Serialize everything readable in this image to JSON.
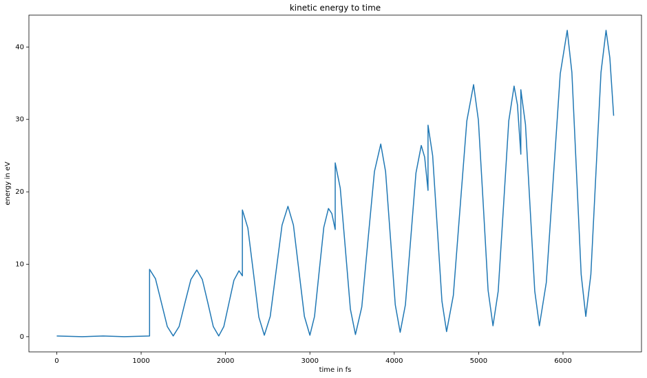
{
  "chart_data": {
    "type": "line",
    "title": "kinetic energy to time",
    "xlabel": "time in fs",
    "ylabel": "energy in eV",
    "color": "#1f77b4",
    "grid": false,
    "x": [
      0,
      300,
      550,
      800,
      1100,
      1100,
      1170,
      1240,
      1310,
      1380,
      1450,
      1520,
      1590,
      1660,
      1725,
      1790,
      1855,
      1920,
      1980,
      2040,
      2100,
      2160,
      2200,
      2200,
      2265,
      2330,
      2395,
      2460,
      2530,
      2600,
      2670,
      2740,
      2805,
      2870,
      2935,
      3000,
      3055,
      3110,
      3165,
      3220,
      3260,
      3300,
      3300,
      3360,
      3420,
      3480,
      3540,
      3615,
      3690,
      3765,
      3840,
      3897,
      3955,
      4012,
      4070,
      4132,
      4195,
      4257,
      4320,
      4360,
      4400,
      4400,
      4455,
      4510,
      4565,
      4620,
      4700,
      4780,
      4860,
      4940,
      4997,
      5055,
      5112,
      5170,
      5232,
      5295,
      5357,
      5420,
      5460,
      5500,
      5500,
      5555,
      5610,
      5665,
      5720,
      5802,
      5885,
      5967,
      6050,
      6105,
      6160,
      6215,
      6270,
      6330,
      6390,
      6450,
      6510,
      6555,
      6600
    ],
    "values": [
      0.1,
      0.0,
      0.1,
      0.0,
      0.1,
      9.3,
      8.0,
      4.7,
      1.4,
      0.1,
      1.4,
      4.7,
      7.9,
      9.2,
      7.9,
      4.7,
      1.4,
      0.1,
      1.4,
      4.6,
      7.8,
      9.1,
      8.4,
      17.5,
      15.0,
      8.9,
      2.7,
      0.2,
      2.8,
      9.1,
      15.4,
      18.0,
      15.4,
      9.1,
      2.8,
      0.2,
      2.8,
      9.0,
      15.1,
      17.7,
      17.0,
      14.8,
      24.0,
      20.5,
      12.2,
      3.8,
      0.3,
      4.1,
      13.5,
      22.8,
      26.6,
      22.8,
      13.6,
      4.4,
      0.6,
      4.4,
      13.5,
      22.6,
      26.4,
      24.8,
      20.2,
      29.2,
      25.0,
      15.0,
      4.9,
      0.7,
      5.7,
      17.8,
      29.8,
      34.8,
      29.9,
      18.2,
      6.4,
      1.5,
      6.3,
      18.1,
      29.8,
      34.6,
      32.0,
      25.2,
      34.1,
      29.3,
      17.8,
      6.3,
      1.5,
      7.5,
      21.9,
      36.3,
      42.3,
      36.5,
      22.6,
      8.6,
      2.8,
      8.6,
      22.6,
      36.5,
      42.3,
      38.5,
      30.5
    ],
    "xlim": [
      -330,
      6930
    ],
    "xticks": [
      0,
      1000,
      2000,
      3000,
      4000,
      5000,
      6000
    ],
    "ylim": [
      -2.1,
      44.4
    ],
    "yticks": [
      0,
      10,
      20,
      30,
      40
    ]
  }
}
